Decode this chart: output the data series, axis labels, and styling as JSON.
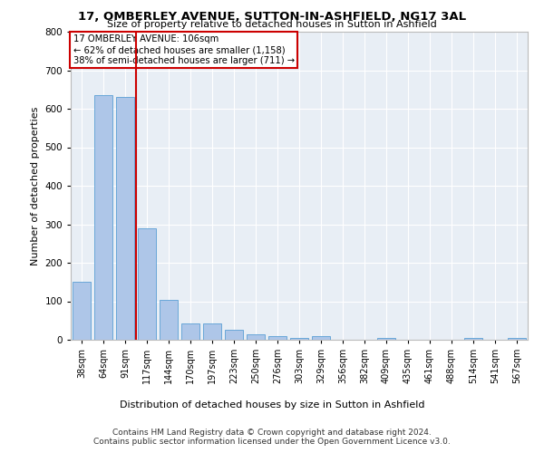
{
  "title": "17, OMBERLEY AVENUE, SUTTON-IN-ASHFIELD, NG17 3AL",
  "subtitle": "Size of property relative to detached houses in Sutton in Ashfield",
  "xlabel": "Distribution of detached houses by size in Sutton in Ashfield",
  "ylabel": "Number of detached properties",
  "footer_line1": "Contains HM Land Registry data © Crown copyright and database right 2024.",
  "footer_line2": "Contains public sector information licensed under the Open Government Licence v3.0.",
  "annotation_line1": "17 OMBERLEY AVENUE: 106sqm",
  "annotation_line2": "← 62% of detached houses are smaller (1,158)",
  "annotation_line3": "38% of semi-detached houses are larger (711) →",
  "bar_labels": [
    "38sqm",
    "64sqm",
    "91sqm",
    "117sqm",
    "144sqm",
    "170sqm",
    "197sqm",
    "223sqm",
    "250sqm",
    "276sqm",
    "303sqm",
    "329sqm",
    "356sqm",
    "382sqm",
    "409sqm",
    "435sqm",
    "461sqm",
    "488sqm",
    "514sqm",
    "541sqm",
    "567sqm"
  ],
  "bar_values": [
    150,
    635,
    630,
    290,
    103,
    42,
    42,
    27,
    14,
    10,
    5,
    10,
    0,
    0,
    5,
    0,
    0,
    0,
    5,
    0,
    5
  ],
  "bar_color": "#aec6e8",
  "bar_edge_color": "#5a9fd4",
  "vline_color": "#cc0000",
  "vline_x": 2.5,
  "annotation_box_color": "#cc0000",
  "background_color": "#e8eef5",
  "ylim": [
    0,
    800
  ],
  "yticks": [
    0,
    100,
    200,
    300,
    400,
    500,
    600,
    700,
    800
  ]
}
